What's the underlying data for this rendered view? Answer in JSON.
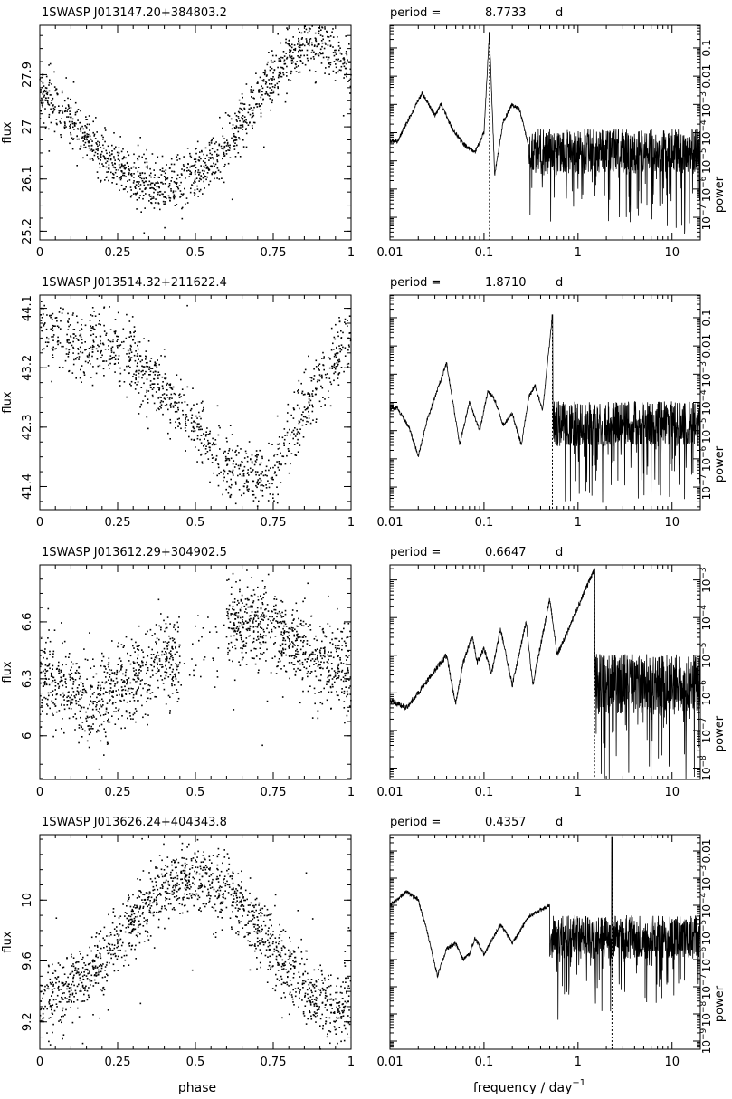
{
  "figure": {
    "x_label_lightcurve": "phase",
    "x_label_periodogram_main": "frequency  /  day",
    "x_label_periodogram_sup": "−1",
    "y_label_lightcurve": "flux",
    "y_label_periodogram": "power",
    "period_prefix": "period =",
    "period_unit": "d"
  },
  "chart_data": [
    {
      "type": "scatter",
      "title": "1SWASP  J013147.20+384803.2",
      "xlabel": "phase",
      "ylabel": "flux",
      "xlim": [
        0,
        1
      ],
      "ylim": [
        25.05,
        28.75
      ],
      "xticks": [
        "0",
        "0.25",
        "0.5",
        "0.75",
        "1"
      ],
      "yticks": [
        25.2,
        26.1,
        27,
        27.9
      ],
      "ytick_labels": [
        "25.2",
        "26.1",
        "27",
        "27.9"
      ],
      "profile_phase": [
        0,
        0.05,
        0.1,
        0.15,
        0.2,
        0.25,
        0.3,
        0.35,
        0.4,
        0.45,
        0.5,
        0.55,
        0.6,
        0.65,
        0.7,
        0.75,
        0.8,
        0.85,
        0.9,
        0.95,
        1
      ],
      "profile_flux": [
        27.6,
        27.4,
        27.1,
        26.8,
        26.5,
        26.3,
        26.05,
        26.0,
        26.0,
        26.05,
        26.2,
        26.4,
        26.7,
        27.1,
        27.5,
        27.9,
        28.2,
        28.4,
        28.45,
        28.3,
        27.9
      ],
      "scatter_sigma": 0.22,
      "n_points": 1300
    },
    {
      "type": "line",
      "period_value": "8.7733",
      "xlabel": "frequency / day−1",
      "ylabel": "power",
      "x_scale": "log",
      "y_scale": "log",
      "xlim": [
        0.01,
        20
      ],
      "ylim_log10": [
        -7.8,
        -0.2
      ],
      "xticks": [
        0.01,
        0.1,
        1,
        10
      ],
      "xtick_labels": [
        "0.01",
        "0.1",
        "1",
        "10"
      ],
      "yticks_log10": [
        -7,
        -6,
        -5,
        -4,
        -3,
        -2,
        -1
      ],
      "ytick_labels": [
        "10−7",
        "10−6",
        "10−5",
        "10−4",
        "10−3",
        "0.01",
        "0.1"
      ],
      "peak_frequency": 0.114,
      "peak_power_log10": -0.45,
      "low_freq_features": [
        [
          0.012,
          -4.3
        ],
        [
          0.022,
          -2.6
        ],
        [
          0.03,
          -3.4
        ],
        [
          0.035,
          -3.0
        ],
        [
          0.045,
          -3.8
        ],
        [
          0.06,
          -4.4
        ],
        [
          0.08,
          -4.7
        ],
        [
          0.1,
          -4.0
        ],
        [
          0.114,
          -0.45
        ],
        [
          0.13,
          -5.5
        ],
        [
          0.16,
          -3.6
        ],
        [
          0.2,
          -3.0
        ],
        [
          0.24,
          -3.2
        ],
        [
          0.3,
          -4.5
        ]
      ],
      "noise_level_log10": -4.9
    },
    {
      "type": "scatter",
      "title": "1SWASP  J013514.32+211622.4",
      "xlabel": "phase",
      "ylabel": "flux",
      "xlim": [
        0,
        1
      ],
      "ylim": [
        41.05,
        44.3
      ],
      "xticks": [
        "0",
        "0.25",
        "0.5",
        "0.75",
        "1"
      ],
      "yticks": [
        41.4,
        42.3,
        43.2,
        44.1
      ],
      "ytick_labels": [
        "41.4",
        "42.3",
        "43.2",
        "44.1"
      ],
      "profile_phase": [
        0,
        0.05,
        0.1,
        0.15,
        0.2,
        0.25,
        0.3,
        0.35,
        0.4,
        0.45,
        0.5,
        0.55,
        0.6,
        0.65,
        0.7,
        0.75,
        0.8,
        0.85,
        0.9,
        0.95,
        1
      ],
      "profile_flux": [
        43.8,
        43.7,
        43.6,
        43.55,
        43.5,
        43.45,
        43.35,
        43.1,
        42.85,
        42.6,
        42.3,
        42.0,
        41.75,
        41.6,
        41.5,
        41.6,
        42.1,
        42.6,
        43.0,
        43.4,
        43.7
      ],
      "scatter_sigma": 0.25,
      "n_points": 1100
    },
    {
      "type": "line",
      "period_value": "1.8710",
      "xlabel": "frequency / day−1",
      "ylabel": "power",
      "x_scale": "log",
      "y_scale": "log",
      "xlim": [
        0.01,
        20
      ],
      "ylim_log10": [
        -7.8,
        -0.2
      ],
      "xticks": [
        0.01,
        0.1,
        1,
        10
      ],
      "xtick_labels": [
        "0.01",
        "0.1",
        "1",
        "10"
      ],
      "yticks_log10": [
        -7,
        -6,
        -5,
        -4,
        -3,
        -2,
        -1
      ],
      "ytick_labels": [
        "10−7",
        "10−6",
        "10−5",
        "10−4",
        "10−3",
        "0.01",
        "0.1"
      ],
      "peak_frequency": 0.534,
      "peak_power_log10": -0.9,
      "low_freq_features": [
        [
          0.012,
          -4.2
        ],
        [
          0.016,
          -4.9
        ],
        [
          0.02,
          -5.9
        ],
        [
          0.025,
          -4.6
        ],
        [
          0.04,
          -2.6
        ],
        [
          0.055,
          -5.5
        ],
        [
          0.07,
          -4.0
        ],
        [
          0.09,
          -5.0
        ],
        [
          0.11,
          -3.6
        ],
        [
          0.13,
          -3.9
        ],
        [
          0.16,
          -4.8
        ],
        [
          0.2,
          -4.4
        ],
        [
          0.25,
          -5.5
        ],
        [
          0.3,
          -3.8
        ],
        [
          0.35,
          -3.4
        ],
        [
          0.42,
          -4.3
        ],
        [
          0.534,
          -0.9
        ]
      ],
      "noise_level_log10": -5.0
    },
    {
      "type": "scatter",
      "title": "1SWASP  J013612.29+304902.5",
      "xlabel": "phase",
      "ylabel": "flux",
      "xlim": [
        0,
        1
      ],
      "ylim": [
        5.77,
        6.9
      ],
      "xticks": [
        "0",
        "0.25",
        "0.5",
        "0.75",
        "1"
      ],
      "yticks": [
        6,
        6.3,
        6.6
      ],
      "ytick_labels": [
        "6",
        "6.3",
        "6.6"
      ],
      "profile_phase": [
        0,
        0.05,
        0.1,
        0.15,
        0.2,
        0.25,
        0.3,
        0.35,
        0.4,
        0.45,
        0.5,
        0.55,
        0.6,
        0.65,
        0.7,
        0.75,
        0.8,
        0.85,
        0.9,
        0.95,
        1
      ],
      "profile_flux": [
        6.32,
        6.3,
        6.25,
        6.18,
        6.2,
        6.25,
        6.3,
        6.36,
        6.4,
        6.43,
        6.45,
        6.47,
        6.58,
        6.6,
        6.58,
        6.55,
        6.5,
        6.45,
        6.4,
        6.36,
        6.32
      ],
      "scatter_sigma": 0.11,
      "gap_phase": [
        0.45,
        0.6
      ],
      "n_points": 1500
    },
    {
      "type": "line",
      "period_value": "0.6647",
      "xlabel": "frequency / day−1",
      "ylabel": "power",
      "x_scale": "log",
      "y_scale": "log",
      "xlim": [
        0.01,
        20
      ],
      "ylim_log10": [
        -8.3,
        -2.6
      ],
      "xticks": [
        0.01,
        0.1,
        1,
        10
      ],
      "xtick_labels": [
        "0.01",
        "0.1",
        "1",
        "10"
      ],
      "yticks_log10": [
        -8,
        -7,
        -6,
        -5,
        -4,
        -3
      ],
      "ytick_labels": [
        "10−8",
        "10−7",
        "10−6",
        "10−5",
        "10−4",
        "10−3"
      ],
      "peak_frequency": 1.5,
      "peak_power_log10": -2.7,
      "low_freq_features": [
        [
          0.01,
          -6.2
        ],
        [
          0.015,
          -6.4
        ],
        [
          0.02,
          -6.0
        ],
        [
          0.03,
          -5.4
        ],
        [
          0.04,
          -5.0
        ],
        [
          0.05,
          -6.3
        ],
        [
          0.06,
          -5.2
        ],
        [
          0.075,
          -4.5
        ],
        [
          0.085,
          -5.2
        ],
        [
          0.1,
          -4.8
        ],
        [
          0.12,
          -5.5
        ],
        [
          0.15,
          -4.3
        ],
        [
          0.2,
          -5.8
        ],
        [
          0.28,
          -4.1
        ],
        [
          0.33,
          -5.8
        ],
        [
          0.5,
          -3.5
        ],
        [
          0.6,
          -5.0
        ],
        [
          1.5,
          -2.7
        ]
      ],
      "noise_level_log10": -6.0
    },
    {
      "type": "scatter",
      "title": "1SWASP  J013626.24+404343.8",
      "xlabel": "phase",
      "ylabel": "flux",
      "xlim": [
        0,
        1
      ],
      "ylim": [
        9.02,
        10.43
      ],
      "xticks": [
        "0",
        "0.25",
        "0.5",
        "0.75",
        "1"
      ],
      "yticks": [
        9.2,
        9.6,
        10
      ],
      "ytick_labels": [
        "9.2",
        "9.6",
        "10"
      ],
      "profile_phase": [
        0,
        0.05,
        0.1,
        0.15,
        0.2,
        0.25,
        0.3,
        0.35,
        0.4,
        0.45,
        0.5,
        0.55,
        0.6,
        0.65,
        0.7,
        0.75,
        0.8,
        0.85,
        0.9,
        0.95,
        1
      ],
      "profile_flux": [
        9.3,
        9.36,
        9.42,
        9.5,
        9.6,
        9.72,
        9.85,
        9.98,
        10.08,
        10.14,
        10.16,
        10.12,
        10.04,
        9.94,
        9.82,
        9.68,
        9.54,
        9.42,
        9.33,
        9.28,
        9.3
      ],
      "scatter_sigma": 0.11,
      "n_points": 1500
    },
    {
      "type": "line",
      "period_value": "0.4357",
      "xlabel": "frequency / day−1",
      "ylabel": "power",
      "x_scale": "log",
      "y_scale": "log",
      "xlim": [
        0.01,
        20
      ],
      "ylim_log10": [
        -9.3,
        -1.4
      ],
      "xticks": [
        0.01,
        0.1,
        1,
        10
      ],
      "xtick_labels": [
        "0.01",
        "0.1",
        "1",
        "10"
      ],
      "yticks_log10": [
        -9,
        -8,
        -7,
        -6,
        -5,
        -4,
        -3,
        -2
      ],
      "ytick_labels": [
        "10−9",
        "10−8",
        "10−7",
        "10−6",
        "10−5",
        "10−4",
        "10−3",
        "0.01"
      ],
      "peak_frequency": 2.3,
      "peak_power_log10": -1.5,
      "low_freq_features": [
        [
          0.01,
          -4.0
        ],
        [
          0.015,
          -3.5
        ],
        [
          0.02,
          -3.8
        ],
        [
          0.025,
          -5.0
        ],
        [
          0.032,
          -6.6
        ],
        [
          0.04,
          -5.6
        ],
        [
          0.05,
          -5.4
        ],
        [
          0.06,
          -6.0
        ],
        [
          0.07,
          -5.8
        ],
        [
          0.08,
          -5.2
        ],
        [
          0.1,
          -5.8
        ],
        [
          0.15,
          -4.7
        ],
        [
          0.2,
          -5.4
        ],
        [
          0.3,
          -4.4
        ],
        [
          0.5,
          -4.0
        ]
      ],
      "noise_level_log10": -5.4
    }
  ]
}
